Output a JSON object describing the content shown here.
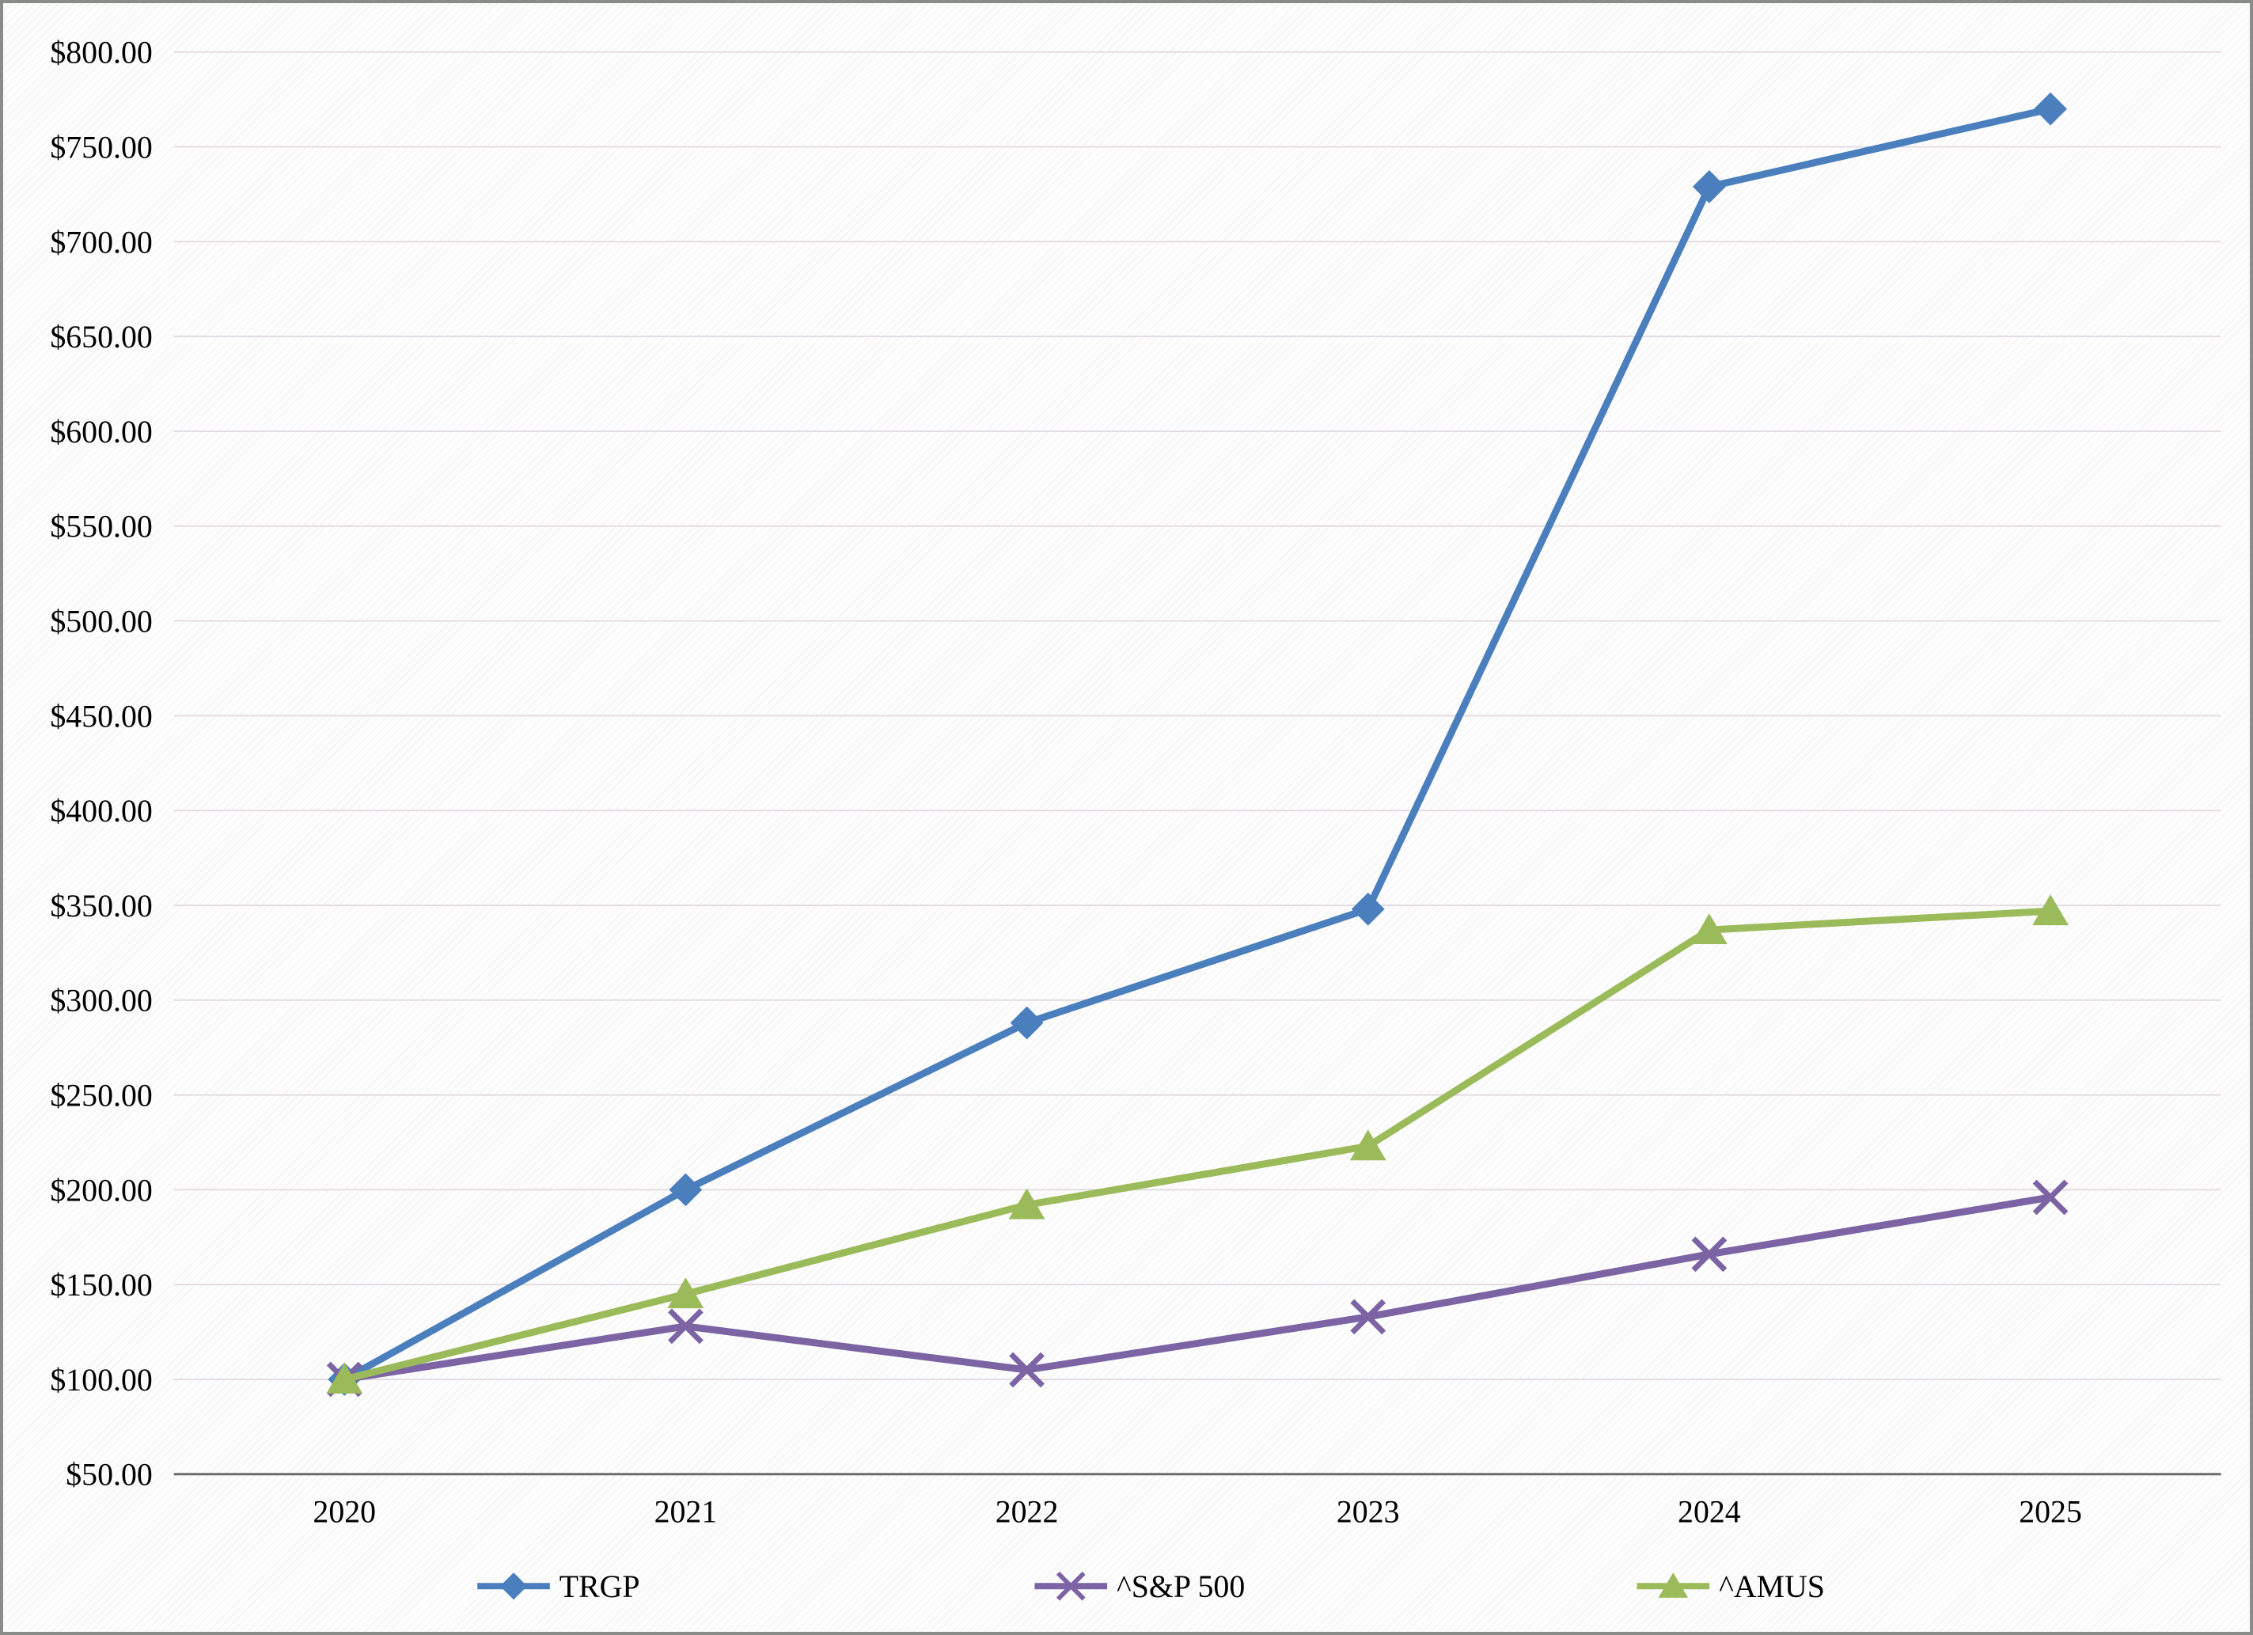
{
  "chart_data": {
    "type": "line",
    "title": "",
    "xlabel": "",
    "ylabel": "",
    "categories": [
      "2020",
      "2021",
      "2022",
      "2023",
      "2024",
      "2025"
    ],
    "series": [
      {
        "name": "TRGP",
        "color": "#4a7ebd",
        "marker": "diamond",
        "values": [
          100,
          200,
          288,
          348,
          729,
          770
        ]
      },
      {
        "name": "^S&P 500",
        "color": "#7c63a3",
        "marker": "x",
        "values": [
          100,
          128,
          105,
          133,
          166,
          196
        ]
      },
      {
        "name": "^AMUS",
        "color": "#9bba59",
        "marker": "triangle",
        "values": [
          100,
          145,
          192,
          223,
          337,
          347
        ]
      }
    ],
    "ylim": [
      50,
      800
    ],
    "ytick_step": 50,
    "yticks": [
      {
        "label": "$800.00",
        "value": 800
      },
      {
        "label": "$750.00",
        "value": 750
      },
      {
        "label": "$700.00",
        "value": 700
      },
      {
        "label": "$650.00",
        "value": 650
      },
      {
        "label": "$600.00",
        "value": 600
      },
      {
        "label": "$550.00",
        "value": 550
      },
      {
        "label": "$500.00",
        "value": 500
      },
      {
        "label": "$450.00",
        "value": 450
      },
      {
        "label": "$400.00",
        "value": 400
      },
      {
        "label": "$350.00",
        "value": 350
      },
      {
        "label": "$300.00",
        "value": 300
      },
      {
        "label": "$250.00",
        "value": 250
      },
      {
        "label": "$200.00",
        "value": 200
      },
      {
        "label": "$150.00",
        "value": 150
      },
      {
        "label": "$100.00",
        "value": 100
      },
      {
        "label": "$50.00",
        "value": 50
      }
    ],
    "grid": "horizontal",
    "legend_position": "bottom",
    "legend_entries": [
      "TRGP",
      "^S&P 500",
      "^AMUS"
    ]
  },
  "colors": {
    "gridline": "#e4dce2",
    "axis_line": "#6b6b6b",
    "frame_border": "#898c89",
    "background": "#fdfdfd",
    "text": "#000000"
  }
}
